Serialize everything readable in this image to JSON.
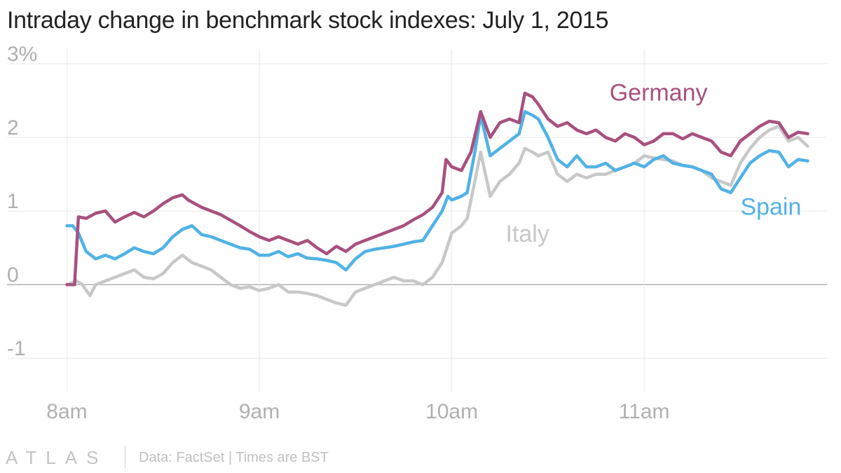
{
  "title": "Intraday change in benchmark stock indexes: July 1, 2015",
  "footer": {
    "brand": "ATLAS",
    "source": "Data: FactSet | Times are BST"
  },
  "colors": {
    "germany": "#a7517f",
    "spain": "#51b2e5",
    "italy": "#c8c8c8",
    "grid": "#e8e8e8",
    "zero_line": "#999999",
    "tick_text": "#b0b0b0"
  },
  "chart_data": {
    "type": "line",
    "title": "Intraday change in benchmark stock indexes: July 1, 2015",
    "xlabel": "",
    "ylabel": "",
    "x_ticks": [
      "8am",
      "9am",
      "10am",
      "11am"
    ],
    "x_tick_hours": [
      8,
      9,
      10,
      11
    ],
    "xlim": [
      7.9,
      11.95
    ],
    "y_ticks": [
      3,
      2,
      1,
      0,
      -1
    ],
    "y_tick_labels": [
      "3%",
      "2",
      "1",
      "0",
      "-1"
    ],
    "ylim": [
      -1.35,
      3.2
    ],
    "grid": true,
    "series": [
      {
        "name": "Germany",
        "color_key": "germany",
        "label_at": [
          10.82,
          2.5
        ],
        "points": [
          [
            8.0,
            0.0
          ],
          [
            8.04,
            0.0
          ],
          [
            8.06,
            0.92
          ],
          [
            8.1,
            0.9
          ],
          [
            8.15,
            0.97
          ],
          [
            8.2,
            1.0
          ],
          [
            8.25,
            0.85
          ],
          [
            8.3,
            0.92
          ],
          [
            8.35,
            0.98
          ],
          [
            8.4,
            0.92
          ],
          [
            8.45,
            1.0
          ],
          [
            8.5,
            1.1
          ],
          [
            8.55,
            1.18
          ],
          [
            8.6,
            1.22
          ],
          [
            8.63,
            1.15
          ],
          [
            8.7,
            1.05
          ],
          [
            8.8,
            0.95
          ],
          [
            8.9,
            0.8
          ],
          [
            8.95,
            0.72
          ],
          [
            9.0,
            0.65
          ],
          [
            9.05,
            0.6
          ],
          [
            9.1,
            0.65
          ],
          [
            9.15,
            0.6
          ],
          [
            9.2,
            0.55
          ],
          [
            9.25,
            0.6
          ],
          [
            9.3,
            0.5
          ],
          [
            9.35,
            0.42
          ],
          [
            9.4,
            0.52
          ],
          [
            9.45,
            0.45
          ],
          [
            9.5,
            0.55
          ],
          [
            9.55,
            0.6
          ],
          [
            9.6,
            0.65
          ],
          [
            9.65,
            0.7
          ],
          [
            9.7,
            0.75
          ],
          [
            9.75,
            0.8
          ],
          [
            9.8,
            0.88
          ],
          [
            9.85,
            0.95
          ],
          [
            9.9,
            1.05
          ],
          [
            9.95,
            1.25
          ],
          [
            9.97,
            1.7
          ],
          [
            10.0,
            1.6
          ],
          [
            10.05,
            1.55
          ],
          [
            10.1,
            1.8
          ],
          [
            10.15,
            2.35
          ],
          [
            10.2,
            2.0
          ],
          [
            10.25,
            2.2
          ],
          [
            10.3,
            2.25
          ],
          [
            10.35,
            2.2
          ],
          [
            10.38,
            2.6
          ],
          [
            10.42,
            2.55
          ],
          [
            10.45,
            2.45
          ],
          [
            10.5,
            2.25
          ],
          [
            10.55,
            2.15
          ],
          [
            10.6,
            2.2
          ],
          [
            10.65,
            2.1
          ],
          [
            10.7,
            2.05
          ],
          [
            10.75,
            2.1
          ],
          [
            10.8,
            2.0
          ],
          [
            10.85,
            1.95
          ],
          [
            10.9,
            2.05
          ],
          [
            10.95,
            2.0
          ],
          [
            11.0,
            1.9
          ],
          [
            11.05,
            1.95
          ],
          [
            11.1,
            2.05
          ],
          [
            11.15,
            2.05
          ],
          [
            11.2,
            1.98
          ],
          [
            11.25,
            2.05
          ],
          [
            11.3,
            2.0
          ],
          [
            11.35,
            1.95
          ],
          [
            11.4,
            1.8
          ],
          [
            11.45,
            1.75
          ],
          [
            11.5,
            1.95
          ],
          [
            11.55,
            2.05
          ],
          [
            11.6,
            2.15
          ],
          [
            11.65,
            2.22
          ],
          [
            11.7,
            2.2
          ],
          [
            11.75,
            2.0
          ],
          [
            11.8,
            2.07
          ],
          [
            11.85,
            2.05
          ]
        ]
      },
      {
        "name": "Spain",
        "color_key": "spain",
        "label_at": [
          11.5,
          0.95
        ],
        "points": [
          [
            8.0,
            0.8
          ],
          [
            8.03,
            0.8
          ],
          [
            8.06,
            0.7
          ],
          [
            8.1,
            0.45
          ],
          [
            8.15,
            0.35
          ],
          [
            8.2,
            0.4
          ],
          [
            8.25,
            0.35
          ],
          [
            8.3,
            0.42
          ],
          [
            8.35,
            0.5
          ],
          [
            8.4,
            0.45
          ],
          [
            8.45,
            0.42
          ],
          [
            8.5,
            0.5
          ],
          [
            8.55,
            0.65
          ],
          [
            8.6,
            0.75
          ],
          [
            8.65,
            0.8
          ],
          [
            8.7,
            0.68
          ],
          [
            8.75,
            0.65
          ],
          [
            8.8,
            0.6
          ],
          [
            8.85,
            0.55
          ],
          [
            8.9,
            0.5
          ],
          [
            8.95,
            0.48
          ],
          [
            9.0,
            0.4
          ],
          [
            9.05,
            0.4
          ],
          [
            9.1,
            0.45
          ],
          [
            9.15,
            0.38
          ],
          [
            9.2,
            0.42
          ],
          [
            9.25,
            0.36
          ],
          [
            9.3,
            0.35
          ],
          [
            9.35,
            0.33
          ],
          [
            9.4,
            0.3
          ],
          [
            9.45,
            0.2
          ],
          [
            9.5,
            0.35
          ],
          [
            9.55,
            0.45
          ],
          [
            9.6,
            0.48
          ],
          [
            9.65,
            0.5
          ],
          [
            9.7,
            0.52
          ],
          [
            9.75,
            0.55
          ],
          [
            9.8,
            0.58
          ],
          [
            9.85,
            0.6
          ],
          [
            9.9,
            0.8
          ],
          [
            9.95,
            1.0
          ],
          [
            9.98,
            1.2
          ],
          [
            10.0,
            1.15
          ],
          [
            10.05,
            1.2
          ],
          [
            10.08,
            1.25
          ],
          [
            10.12,
            1.8
          ],
          [
            10.15,
            2.3
          ],
          [
            10.2,
            1.75
          ],
          [
            10.25,
            1.85
          ],
          [
            10.3,
            1.95
          ],
          [
            10.35,
            2.05
          ],
          [
            10.38,
            2.35
          ],
          [
            10.42,
            2.3
          ],
          [
            10.45,
            2.25
          ],
          [
            10.5,
            2.0
          ],
          [
            10.55,
            1.7
          ],
          [
            10.6,
            1.6
          ],
          [
            10.65,
            1.75
          ],
          [
            10.7,
            1.6
          ],
          [
            10.75,
            1.6
          ],
          [
            10.8,
            1.65
          ],
          [
            10.85,
            1.55
          ],
          [
            10.9,
            1.6
          ],
          [
            10.95,
            1.65
          ],
          [
            11.0,
            1.6
          ],
          [
            11.05,
            1.7
          ],
          [
            11.1,
            1.75
          ],
          [
            11.15,
            1.65
          ],
          [
            11.2,
            1.62
          ],
          [
            11.25,
            1.6
          ],
          [
            11.3,
            1.55
          ],
          [
            11.35,
            1.5
          ],
          [
            11.4,
            1.3
          ],
          [
            11.45,
            1.25
          ],
          [
            11.5,
            1.45
          ],
          [
            11.55,
            1.65
          ],
          [
            11.6,
            1.75
          ],
          [
            11.65,
            1.82
          ],
          [
            11.7,
            1.8
          ],
          [
            11.75,
            1.6
          ],
          [
            11.8,
            1.7
          ],
          [
            11.85,
            1.68
          ]
        ]
      },
      {
        "name": "Italy",
        "color_key": "italy",
        "label_at": [
          10.28,
          0.58
        ],
        "points": [
          [
            8.0,
            0.0
          ],
          [
            8.05,
            0.05
          ],
          [
            8.08,
            0.0
          ],
          [
            8.12,
            -0.15
          ],
          [
            8.15,
            0.0
          ],
          [
            8.2,
            0.05
          ],
          [
            8.25,
            0.1
          ],
          [
            8.3,
            0.15
          ],
          [
            8.35,
            0.2
          ],
          [
            8.4,
            0.1
          ],
          [
            8.45,
            0.08
          ],
          [
            8.5,
            0.15
          ],
          [
            8.55,
            0.3
          ],
          [
            8.6,
            0.4
          ],
          [
            8.65,
            0.3
          ],
          [
            8.7,
            0.25
          ],
          [
            8.75,
            0.2
          ],
          [
            8.8,
            0.1
          ],
          [
            8.85,
            0.0
          ],
          [
            8.9,
            -0.05
          ],
          [
            8.95,
            -0.03
          ],
          [
            9.0,
            -0.08
          ],
          [
            9.05,
            -0.05
          ],
          [
            9.1,
            0.0
          ],
          [
            9.15,
            -0.1
          ],
          [
            9.2,
            -0.1
          ],
          [
            9.25,
            -0.12
          ],
          [
            9.3,
            -0.15
          ],
          [
            9.35,
            -0.2
          ],
          [
            9.4,
            -0.25
          ],
          [
            9.45,
            -0.28
          ],
          [
            9.5,
            -0.1
          ],
          [
            9.55,
            -0.05
          ],
          [
            9.6,
            0.0
          ],
          [
            9.65,
            0.05
          ],
          [
            9.7,
            0.1
          ],
          [
            9.75,
            0.05
          ],
          [
            9.8,
            0.05
          ],
          [
            9.85,
            0.0
          ],
          [
            9.9,
            0.1
          ],
          [
            9.95,
            0.3
          ],
          [
            10.0,
            0.7
          ],
          [
            10.05,
            0.8
          ],
          [
            10.08,
            0.9
          ],
          [
            10.12,
            1.4
          ],
          [
            10.15,
            1.8
          ],
          [
            10.2,
            1.2
          ],
          [
            10.25,
            1.4
          ],
          [
            10.3,
            1.5
          ],
          [
            10.35,
            1.65
          ],
          [
            10.38,
            1.85
          ],
          [
            10.42,
            1.8
          ],
          [
            10.45,
            1.75
          ],
          [
            10.5,
            1.8
          ],
          [
            10.55,
            1.5
          ],
          [
            10.6,
            1.4
          ],
          [
            10.65,
            1.5
          ],
          [
            10.7,
            1.45
          ],
          [
            10.75,
            1.5
          ],
          [
            10.8,
            1.5
          ],
          [
            10.85,
            1.55
          ],
          [
            10.9,
            1.6
          ],
          [
            10.95,
            1.65
          ],
          [
            11.0,
            1.75
          ],
          [
            11.05,
            1.72
          ],
          [
            11.1,
            1.7
          ],
          [
            11.15,
            1.68
          ],
          [
            11.2,
            1.62
          ],
          [
            11.25,
            1.6
          ],
          [
            11.3,
            1.55
          ],
          [
            11.35,
            1.45
          ],
          [
            11.4,
            1.4
          ],
          [
            11.45,
            1.35
          ],
          [
            11.5,
            1.65
          ],
          [
            11.55,
            1.85
          ],
          [
            11.6,
            2.0
          ],
          [
            11.65,
            2.1
          ],
          [
            11.7,
            2.15
          ],
          [
            11.75,
            1.95
          ],
          [
            11.8,
            2.0
          ],
          [
            11.85,
            1.88
          ]
        ]
      }
    ]
  }
}
